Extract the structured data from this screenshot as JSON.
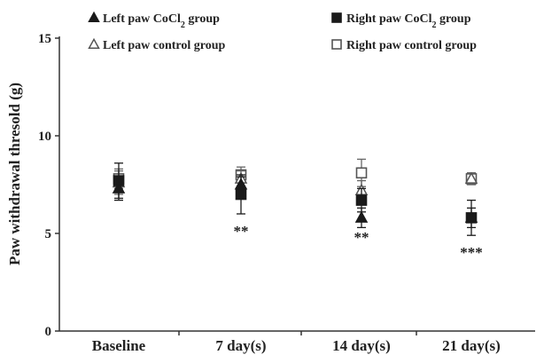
{
  "chart_data": {
    "type": "scatter",
    "ylabel": "Paw withdrawal thresold (g)",
    "ylim": [
      0,
      15
    ],
    "yticks": [
      0,
      5,
      10,
      15
    ],
    "categories": [
      "Baseline",
      "7 day(s)",
      "14 day(s)",
      "21 day(s)"
    ],
    "grid": false,
    "legend": [
      {
        "marker": "filled-triangle",
        "text_pre": "Left paw CoCl",
        "sub": "2",
        "text_post": " group"
      },
      {
        "marker": "filled-square",
        "text_pre": "Right paw CoCl",
        "sub": "2",
        "text_post": " group"
      },
      {
        "marker": "open-triangle",
        "text_pre": "Left paw control group",
        "sub": "",
        "text_post": ""
      },
      {
        "marker": "open-square",
        "text_pre": "Right paw control group",
        "sub": "",
        "text_post": ""
      }
    ],
    "series": [
      {
        "marker": "open-square",
        "values": [
          7.8,
          8.0,
          8.1,
          7.8
        ],
        "errors": [
          0.5,
          0.4,
          0.7,
          0.3
        ]
      },
      {
        "marker": "open-triangle",
        "values": [
          7.6,
          7.8,
          7.2,
          7.8
        ],
        "errors": [
          0.6,
          0.4,
          0.5,
          0.3
        ]
      },
      {
        "marker": "filled-square",
        "values": [
          7.7,
          7.0,
          6.7,
          5.8
        ],
        "errors": [
          0.9,
          1.0,
          0.6,
          0.9
        ]
      },
      {
        "marker": "filled-triangle",
        "values": [
          7.3,
          7.5,
          5.8,
          5.8
        ],
        "errors": [
          0.6,
          0.4,
          0.5,
          0.5
        ]
      }
    ],
    "significance": [
      "",
      "**",
      "**",
      "***"
    ]
  }
}
